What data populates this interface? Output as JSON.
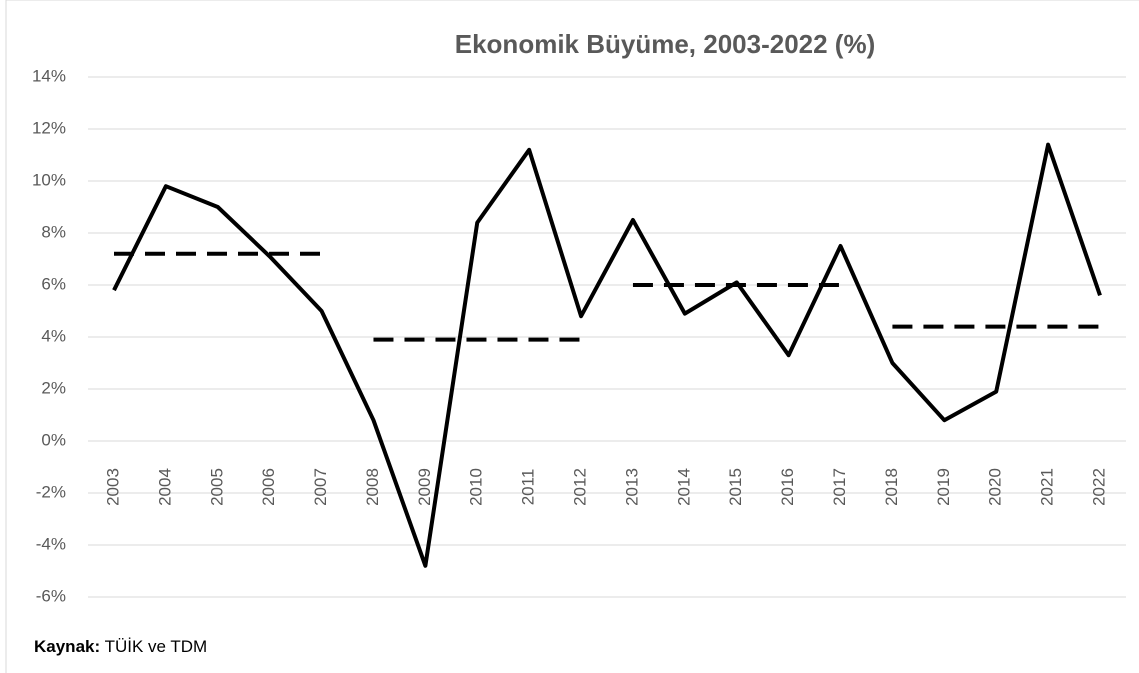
{
  "chart_data": {
    "type": "line",
    "title": "Ekonomik Büyüme, 2003-2022 (%)",
    "source_label": "Kaynak:",
    "source": "TÜİK ve TDM",
    "categories": [
      "2003",
      "2004",
      "2005",
      "2006",
      "2007",
      "2008",
      "2009",
      "2010",
      "2011",
      "2012",
      "2013",
      "2014",
      "2015",
      "2016",
      "2017",
      "2018",
      "2019",
      "2020",
      "2021",
      "2022"
    ],
    "series": [
      {
        "color": "#000000",
        "style": "solid",
        "values": [
          5.8,
          9.8,
          9.0,
          7.1,
          5.0,
          0.8,
          -4.8,
          8.4,
          11.2,
          4.8,
          8.5,
          4.9,
          6.1,
          3.3,
          7.5,
          3.0,
          0.8,
          1.9,
          11.4,
          5.6
        ]
      },
      {
        "color": "#000000",
        "style": "dashed",
        "values": [
          7.2,
          7.2,
          7.2,
          7.2,
          7.2,
          null,
          null,
          null,
          null,
          null,
          null,
          null,
          null,
          null,
          null,
          null,
          null,
          null,
          null,
          null
        ]
      },
      {
        "color": "#000000",
        "style": "dashed",
        "values": [
          null,
          null,
          null,
          null,
          null,
          3.9,
          3.9,
          3.9,
          3.9,
          3.9,
          null,
          null,
          null,
          null,
          null,
          null,
          null,
          null,
          null,
          null
        ]
      },
      {
        "color": "#000000",
        "style": "dashed",
        "values": [
          null,
          null,
          null,
          null,
          null,
          null,
          null,
          null,
          null,
          null,
          6.0,
          6.0,
          6.0,
          6.0,
          6.0,
          null,
          null,
          null,
          null,
          null
        ]
      },
      {
        "color": "#000000",
        "style": "dashed",
        "values": [
          null,
          null,
          null,
          null,
          null,
          null,
          null,
          null,
          null,
          null,
          null,
          null,
          null,
          null,
          null,
          4.4,
          4.4,
          4.4,
          4.4,
          4.4
        ]
      }
    ],
    "ylim": [
      -6,
      14
    ],
    "yticks": [
      {
        "value": -6,
        "label": "-6%"
      },
      {
        "value": -4,
        "label": "-4%"
      },
      {
        "value": -2,
        "label": "-2%"
      },
      {
        "value": 0,
        "label": "0%"
      },
      {
        "value": 2,
        "label": "2%"
      },
      {
        "value": 4,
        "label": "4%"
      },
      {
        "value": 6,
        "label": "6%"
      },
      {
        "value": 8,
        "label": "8%"
      },
      {
        "value": 10,
        "label": "10%"
      },
      {
        "value": 12,
        "label": "12%"
      },
      {
        "value": 14,
        "label": "14%"
      }
    ],
    "grid": true
  }
}
